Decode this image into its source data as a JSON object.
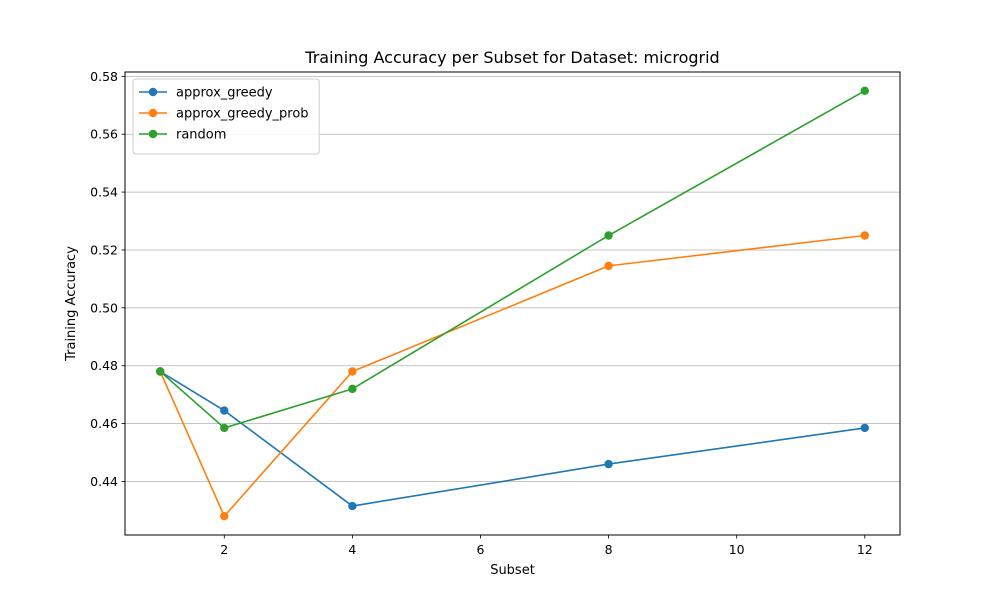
{
  "chart_data": {
    "type": "line",
    "title": "Training Accuracy per Subset for Dataset: microgrid",
    "xlabel": "Subset",
    "ylabel": "Training Accuracy",
    "xlim": [
      0.45,
      12.55
    ],
    "ylim": [
      0.4215,
      0.5815
    ],
    "xticks": [
      2,
      4,
      6,
      8,
      10,
      12
    ],
    "yticks": [
      0.44,
      0.46,
      0.48,
      0.5,
      0.52,
      0.54,
      0.56,
      0.58
    ],
    "grid": "y",
    "legend_position": "top-left",
    "x": [
      1,
      2,
      4,
      8,
      12
    ],
    "series": [
      {
        "name": "approx_greedy",
        "color": "#1f77b4",
        "values": [
          0.478,
          0.4645,
          0.4315,
          0.446,
          0.4585
        ]
      },
      {
        "name": "approx_greedy_prob",
        "color": "#ff7f0e",
        "values": [
          0.478,
          0.428,
          0.478,
          0.5145,
          0.525
        ]
      },
      {
        "name": "random",
        "color": "#2ca02c",
        "values": [
          0.478,
          0.4585,
          0.472,
          0.525,
          0.575
        ]
      }
    ]
  }
}
